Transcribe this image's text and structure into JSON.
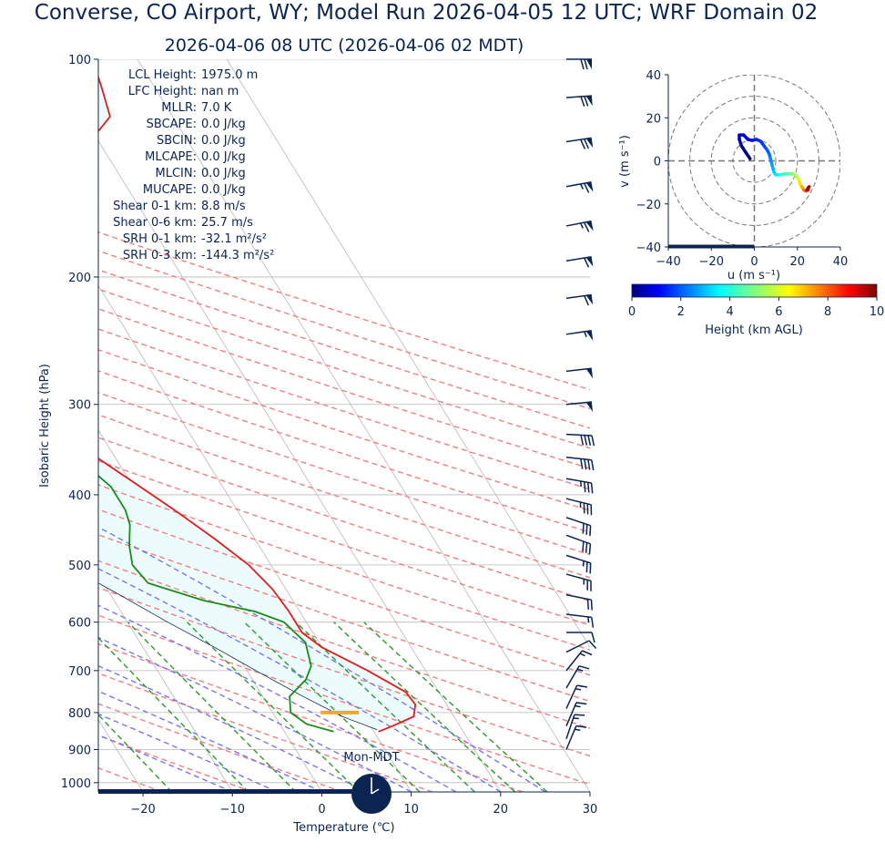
{
  "title": "Converse, CO Airport, WY; Model Run 2026-04-05 12 UTC; WRF Domain 02",
  "subtitle": "2026-04-06 08 UTC  (2026-04-06 02 MDT)",
  "colors": {
    "text": "#0b2452",
    "temperature": "#e41a1c",
    "dewpoint": "#1a8a1a",
    "parcel": "#0b2452",
    "dry_adiabat": "#f08080",
    "moist_adiabat": "#7777ee",
    "mixing_ratio": "#2a9a2a",
    "isotherm": "#b8b8b8",
    "cape_shade": "#ecfcfc",
    "lcl_marker": "#f5a623",
    "barb": "#0b2452"
  },
  "chart_data": [
    {
      "type": "skewt",
      "xlabel": "Temperature (℃)",
      "ylabel": "Isobaric Height (hPa)",
      "x_ticks": [
        -20,
        -10,
        0,
        10,
        20,
        30
      ],
      "y_ticks": [
        100,
        200,
        300,
        400,
        500,
        600,
        700,
        800,
        900,
        1000
      ],
      "xlim": [
        -25,
        30
      ],
      "ylim": [
        1030,
        100
      ],
      "skew_deg_per_log_decade": 50,
      "temperature_profile": [
        [
          850,
          10.5
        ],
        [
          835,
          12.5
        ],
        [
          810,
          15.5
        ],
        [
          780,
          16.5
        ],
        [
          750,
          16.3
        ],
        [
          700,
          13.5
        ],
        [
          650,
          10
        ],
        [
          620,
          8.8
        ],
        [
          580,
          8.8
        ],
        [
          540,
          8.5
        ],
        [
          500,
          7.5
        ],
        [
          460,
          5.5
        ],
        [
          420,
          3
        ],
        [
          380,
          0
        ],
        [
          350,
          -2.5
        ],
        [
          300,
          -6.5
        ],
        [
          250,
          -10.5
        ],
        [
          220,
          -11.5
        ],
        [
          200,
          -10
        ],
        [
          190,
          -8
        ],
        [
          150,
          14
        ],
        [
          130,
          19
        ],
        [
          120,
          23
        ],
        [
          110,
          24
        ],
        [
          100,
          25
        ]
      ],
      "dewpoint_profile": [
        [
          850,
          5.5
        ],
        [
          830,
          3
        ],
        [
          800,
          2
        ],
        [
          760,
          3
        ],
        [
          720,
          6
        ],
        [
          690,
          7.5
        ],
        [
          640,
          8.5
        ],
        [
          620,
          8
        ],
        [
          600,
          7.5
        ],
        [
          580,
          5
        ],
        [
          560,
          0
        ],
        [
          530,
          -5
        ],
        [
          500,
          -5.5
        ],
        [
          470,
          -4.5
        ],
        [
          440,
          -3
        ],
        [
          420,
          -2.5
        ],
        [
          390,
          -2.5
        ],
        [
          360,
          -4
        ],
        [
          330,
          -5.5
        ],
        [
          300,
          -7.5
        ],
        [
          260,
          -11
        ],
        [
          240,
          -12.5
        ],
        [
          220,
          -12
        ],
        [
          200,
          -10.5
        ],
        [
          180,
          -9.5
        ],
        [
          160,
          -9
        ],
        [
          150,
          -9
        ],
        [
          135,
          -8
        ],
        [
          120,
          -6
        ],
        [
          100,
          -2
        ]
      ],
      "parcel_profile": [
        [
          845,
          10.5
        ],
        [
          810,
          7.5
        ],
        [
          760,
          4.5
        ],
        [
          700,
          1
        ],
        [
          650,
          -2
        ],
        [
          600,
          -5.5
        ],
        [
          550,
          -9
        ],
        [
          500,
          -13
        ],
        [
          450,
          -17.5
        ],
        [
          400,
          -23
        ],
        [
          350,
          -29.5
        ],
        [
          300,
          -37
        ],
        [
          250,
          -45.5
        ],
        [
          200,
          -55.5
        ],
        [
          170,
          -62
        ],
        [
          150,
          -67
        ]
      ],
      "cape_shade_polygon": [
        [
          845,
          10.5
        ],
        [
          810,
          15.5
        ],
        [
          780,
          16.5
        ],
        [
          750,
          16.3
        ],
        [
          700,
          13.5
        ],
        [
          650,
          10
        ],
        [
          620,
          8.8
        ],
        [
          580,
          8.8
        ],
        [
          540,
          8.5
        ],
        [
          500,
          7.5
        ],
        [
          460,
          5.5
        ],
        [
          420,
          3
        ],
        [
          380,
          0
        ],
        [
          350,
          -2.5
        ],
        [
          300,
          -6.5
        ],
        [
          250,
          -10.5
        ],
        [
          220,
          -11.5
        ],
        [
          200,
          -10
        ],
        [
          190,
          -8
        ],
        [
          150,
          14
        ],
        [
          130,
          19
        ],
        [
          120,
          23
        ],
        [
          110,
          24
        ],
        [
          100,
          25
        ],
        [
          100,
          -70
        ],
        [
          150,
          -67
        ],
        [
          170,
          -62
        ],
        [
          200,
          -55.5
        ],
        [
          250,
          -45.5
        ],
        [
          300,
          -37
        ],
        [
          350,
          -29.5
        ],
        [
          400,
          -23
        ],
        [
          450,
          -17.5
        ],
        [
          500,
          -13
        ],
        [
          550,
          -9
        ],
        [
          600,
          -5.5
        ],
        [
          650,
          -2
        ],
        [
          700,
          1
        ],
        [
          760,
          4.5
        ],
        [
          810,
          7.5
        ]
      ],
      "lcl_pressure": 800,
      "lcl_temperature": 7.5,
      "wind_barbs_pressure": [
        100,
        113,
        130,
        150,
        170,
        190,
        214,
        240,
        270,
        300,
        330,
        355,
        380,
        405,
        430,
        455,
        485,
        515,
        550,
        585,
        620,
        660,
        700,
        740,
        790,
        835,
        870,
        900
      ],
      "wind_barbs_kt": [
        [
          70,
          0
        ],
        [
          70,
          5
        ],
        [
          68,
          10
        ],
        [
          65,
          12
        ],
        [
          62,
          12
        ],
        [
          60,
          10
        ],
        [
          58,
          8
        ],
        [
          55,
          8
        ],
        [
          52,
          6
        ],
        [
          50,
          5
        ],
        [
          40,
          -2
        ],
        [
          38,
          -4
        ],
        [
          35,
          -6
        ],
        [
          33,
          -8
        ],
        [
          30,
          -10
        ],
        [
          28,
          -10
        ],
        [
          25,
          -8
        ],
        [
          22,
          -6
        ],
        [
          20,
          -4
        ],
        [
          16,
          -2
        ],
        [
          12,
          0
        ],
        [
          10,
          5
        ],
        [
          8,
          10
        ],
        [
          7,
          12
        ],
        [
          6,
          13
        ],
        [
          6,
          14
        ],
        [
          5,
          15
        ],
        [
          5,
          12
        ]
      ],
      "annotations": [
        {
          "label": "LCL Height:",
          "value": "1975.0 m"
        },
        {
          "label": "LFC Height:",
          "value": "nan m"
        },
        {
          "label": "MLLR:",
          "value": "7.0 K"
        },
        {
          "label": "SBCAPE:",
          "value": "0.0 J/kg"
        },
        {
          "label": "SBCIN:",
          "value": "0.0 J/kg"
        },
        {
          "label": "MLCAPE:",
          "value": "0.0 J/kg"
        },
        {
          "label": "MLCIN:",
          "value": "0.0 J/kg"
        },
        {
          "label": "MUCAPE:",
          "value": "0.0 J/kg"
        },
        {
          "label": "Shear 0-1 km:",
          "value": "8.8 m/s"
        },
        {
          "label": "Shear 0-6 km:",
          "value": "25.7 m/s"
        },
        {
          "label": "SRH 0-1 km:",
          "value": "-32.1 m²/s²"
        },
        {
          "label": "SRH 0-3 km:",
          "value": "-144.3 m²/s²"
        }
      ],
      "clock_label": "Mon-MDT",
      "clock_time": "02:00"
    },
    {
      "type": "hodograph",
      "xlabel": "u (m s⁻¹)",
      "ylabel": "v (m s⁻¹)",
      "x_ticks": [
        -40,
        -20,
        0,
        20,
        40
      ],
      "y_ticks": [
        40,
        20,
        0,
        -20,
        -40
      ],
      "xlim": [
        -40,
        40
      ],
      "ylim": [
        -40,
        40
      ],
      "rings": [
        10,
        20,
        30,
        40
      ],
      "points": [
        {
          "u": -2,
          "v": 1,
          "h": 0
        },
        {
          "u": -4,
          "v": 4,
          "h": 0.15
        },
        {
          "u": -6,
          "v": 7,
          "h": 0.3
        },
        {
          "u": -7,
          "v": 10,
          "h": 0.5
        },
        {
          "u": -7,
          "v": 12,
          "h": 0.7
        },
        {
          "u": -5,
          "v": 12,
          "h": 0.9
        },
        {
          "u": -3,
          "v": 10,
          "h": 1.1
        },
        {
          "u": -1,
          "v": 9.5,
          "h": 1.3
        },
        {
          "u": 1,
          "v": 10,
          "h": 1.5
        },
        {
          "u": 3,
          "v": 9,
          "h": 1.7
        },
        {
          "u": 4.5,
          "v": 7,
          "h": 1.9
        },
        {
          "u": 6,
          "v": 5,
          "h": 2.1
        },
        {
          "u": 7,
          "v": 3,
          "h": 2.3
        },
        {
          "u": 7.5,
          "v": 1,
          "h": 2.5
        },
        {
          "u": 8,
          "v": -1,
          "h": 2.7
        },
        {
          "u": 8.5,
          "v": -3,
          "h": 2.9
        },
        {
          "u": 9,
          "v": -5,
          "h": 3.1
        },
        {
          "u": 10,
          "v": -6.5,
          "h": 3.4
        },
        {
          "u": 12,
          "v": -6.5,
          "h": 3.8
        },
        {
          "u": 14,
          "v": -6,
          "h": 4.2
        },
        {
          "u": 16,
          "v": -6,
          "h": 4.6
        },
        {
          "u": 18,
          "v": -6,
          "h": 5.0
        },
        {
          "u": 19.5,
          "v": -7,
          "h": 5.4
        },
        {
          "u": 20.5,
          "v": -8.5,
          "h": 5.8
        },
        {
          "u": 21,
          "v": -10,
          "h": 6.3
        },
        {
          "u": 22,
          "v": -12,
          "h": 6.8
        },
        {
          "u": 23,
          "v": -13.5,
          "h": 7.3
        },
        {
          "u": 24,
          "v": -14,
          "h": 7.8
        },
        {
          "u": 25,
          "v": -13.5,
          "h": 8.3
        },
        {
          "u": 25,
          "v": -12.5,
          "h": 8.8
        },
        {
          "u": 24.5,
          "v": -13.5,
          "h": 9.3
        },
        {
          "u": 25.5,
          "v": -12,
          "h": 9.8
        }
      ]
    },
    {
      "type": "colorbar",
      "label": "Height (km AGL)",
      "range": [
        0,
        10
      ],
      "ticks": [
        0,
        2,
        4,
        6,
        8,
        10
      ],
      "colormap": "jet"
    }
  ]
}
